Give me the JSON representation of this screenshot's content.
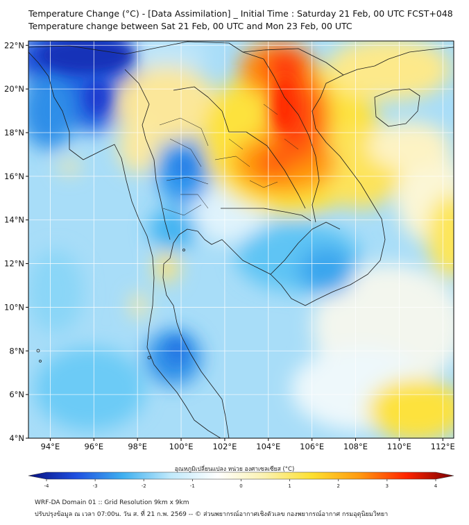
{
  "title_line1": "Temperature Change (°C) - [Data Assimilation] _ Initial Time : Saturday 21 Feb, 00 UTC FCST+048",
  "title_line2": "Temperature change between Sat 21 Feb, 00 UTC and Mon 23 Feb, 00 UTC",
  "map": {
    "lat_ticks": [
      "22°N",
      "20°N",
      "18°N",
      "16°N",
      "14°N",
      "12°N",
      "10°N",
      "8°N",
      "6°N",
      "4°N"
    ],
    "lon_ticks": [
      "94°E",
      "96°E",
      "98°E",
      "100°E",
      "102°E",
      "104°E",
      "106°E",
      "108°E",
      "110°E",
      "112°E"
    ],
    "lon_range": [
      93,
      112.5
    ],
    "lat_range": [
      4,
      22.2
    ],
    "grid": true
  },
  "colorbar": {
    "label": "อุณหภูมิเปลี่ยนแปลง หน่วย องศาเซลเซียส (°C)",
    "ticks": [
      "-4",
      "-3",
      "-2",
      "-1",
      "0",
      "1",
      "2",
      "3",
      "4"
    ],
    "range": [
      -4,
      4
    ],
    "colors": [
      "#08107e",
      "#1f4fe0",
      "#3fb0f0",
      "#bfe9fb",
      "#ffffff",
      "#fbf2b0",
      "#fde030",
      "#ff9a10",
      "#ff2400",
      "#7a0000"
    ]
  },
  "footer_line1": "WRF-DA Domain 01 :: Grid Resolution 9km x 9km",
  "footer_line2": "ปรับปรุงข้อมูล ณ เวลา 07:00น. วัน ส. ที่ 21 ก.พ. 2569 -- © ส่วนพยากรณ์อากาศเชิงตัวเลข กองพยากรณ์อากาศ กรมอุตุนิยมวิทยา"
}
